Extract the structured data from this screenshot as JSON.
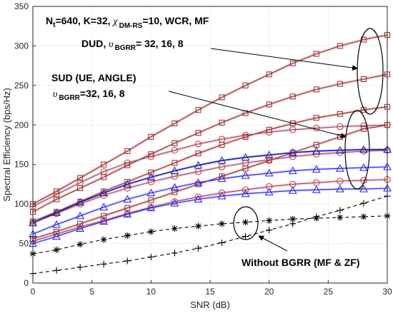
{
  "chart_data": {
    "type": "line",
    "xlabel": "SNR (dB)",
    "ylabel": "Spectral Efficiency (bps/Hz)",
    "xlim": [
      0,
      30
    ],
    "ylim": [
      0,
      350
    ],
    "xticks": [
      0,
      5,
      10,
      15,
      20,
      25,
      30
    ],
    "yticks": [
      0,
      50,
      100,
      150,
      200,
      250,
      300,
      350
    ],
    "grid": true,
    "x": [
      0,
      2,
      4,
      6,
      8,
      10,
      12,
      14,
      16,
      18,
      20,
      22,
      24,
      26,
      28,
      30
    ],
    "colors": {
      "dud": "#8b2a2a",
      "dud_fill": "#f3c9c9",
      "sud_angle": "#c0392b",
      "sud_ue": "#1a1aff",
      "sud_ue_dark": "#1a1ab4",
      "baseline": "#000000"
    },
    "series": [
      {
        "group": "dud",
        "marker": "square",
        "dash": false,
        "values": [
          100,
          116,
          133,
          150,
          167,
          185,
          202,
          219,
          235,
          250,
          264,
          278,
          290,
          300,
          308,
          314
        ]
      },
      {
        "group": "dud",
        "marker": "square",
        "dash": false,
        "values": [
          90,
          106,
          120,
          134,
          149,
          163,
          177,
          190,
          203,
          215,
          226,
          236,
          245,
          252,
          258,
          264
        ]
      },
      {
        "group": "dud",
        "marker": "square",
        "dash": false,
        "values": [
          78,
          90,
          103,
          116,
          128,
          140,
          152,
          164,
          175,
          185,
          194,
          202,
          209,
          214,
          219,
          223
        ]
      },
      {
        "group": "dud",
        "marker": "square",
        "dash": false,
        "values": [
          56,
          65,
          75,
          85,
          95,
          105,
          115,
          125,
          135,
          145,
          155,
          165,
          175,
          185,
          195,
          200
        ]
      },
      {
        "group": "sud_angle",
        "marker": "circle",
        "dash": false,
        "values": [
          97,
          112,
          127,
          141,
          152,
          160,
          168,
          176,
          182,
          187,
          191,
          194,
          196,
          198,
          199,
          200
        ]
      },
      {
        "group": "sud_angle",
        "marker": "circle",
        "dash": false,
        "values": [
          76,
          88,
          100,
          111,
          120,
          128,
          135,
          141,
          147,
          152,
          156,
          160,
          163,
          165,
          167,
          168
        ]
      },
      {
        "group": "sud_angle",
        "marker": "circle",
        "dash": false,
        "values": [
          53,
          62,
          71,
          79,
          88,
          96,
          103,
          109,
          114,
          118,
          122,
          125,
          127,
          129,
          130,
          131
        ]
      },
      {
        "group": "sud_ue_dark",
        "marker": "triangle",
        "dash": false,
        "values": [
          76,
          89,
          102,
          114,
          125,
          134,
          142,
          149,
          155,
          159,
          162,
          165,
          167,
          168,
          169,
          169
        ]
      },
      {
        "group": "sud_ue",
        "marker": "triangle",
        "dash": false,
        "values": [
          62,
          74,
          85,
          96,
          106,
          114,
          121,
          127,
          132,
          136,
          139,
          142,
          144,
          145,
          146,
          147
        ]
      },
      {
        "group": "sud_ue",
        "marker": "triangle",
        "dash": false,
        "values": [
          50,
          59,
          69,
          78,
          87,
          95,
          101,
          106,
          110,
          113,
          115,
          117,
          118,
          119,
          119,
          120
        ]
      },
      {
        "group": "baseline",
        "marker": "asterisk",
        "dash": true,
        "values": [
          37,
          42,
          49,
          55,
          60,
          65,
          69,
          72,
          75,
          77,
          79,
          81,
          82,
          83,
          84,
          85
        ]
      },
      {
        "group": "baseline",
        "marker": "plus",
        "dash": true,
        "values": [
          12,
          16,
          20,
          24,
          28,
          33,
          38,
          44,
          51,
          59,
          67,
          75,
          84,
          92,
          101,
          110
        ]
      }
    ],
    "annotations": {
      "header": {
        "n_t": "N",
        "n_t_sub": "t",
        "part1": "=640, K=32, ",
        "chi": "χ",
        "chi_sub": "DM-RS",
        "part2": "=10, WCR, MF"
      },
      "dud": {
        "label": "DUD, ",
        "upsilon": "υ",
        "sub": "BGRR",
        "value": "= 32, 16, 8"
      },
      "sud": {
        "line1": "SUD (UE, ANGLE)",
        "upsilon": "υ",
        "sub": "BGRR",
        "value": "=32, 16, 8"
      },
      "baseline": "Without BGRR (MF & ZF)"
    }
  }
}
